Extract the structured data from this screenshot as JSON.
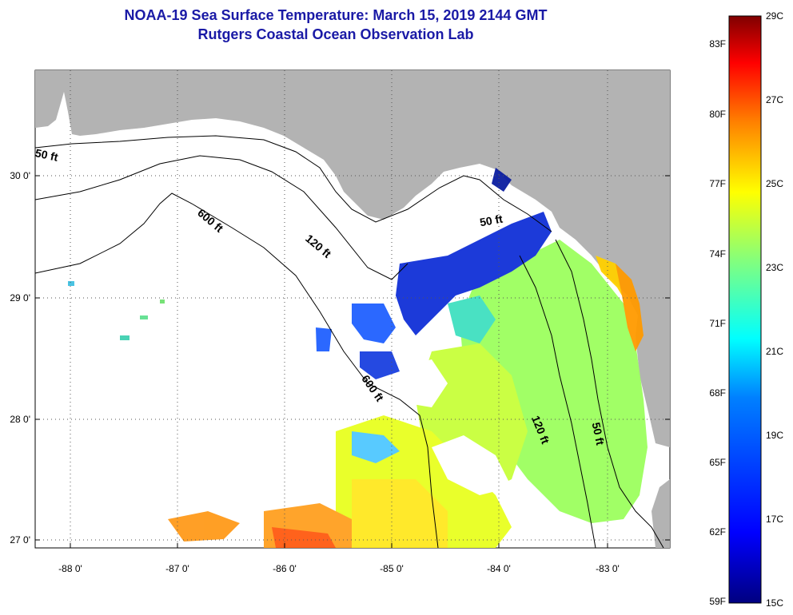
{
  "title": {
    "line1": "NOAA-19 Sea Surface Temperature:  March 15, 2019 2144 GMT",
    "line2": "Rutgers Coastal Ocean Observation Lab"
  },
  "latitude_labels": [
    "30 0'",
    "29 0'",
    "28 0'",
    "27 0'"
  ],
  "longitude_labels": [
    "-88 0'",
    "-87 0'",
    "-86 0'",
    "-85 0'",
    "-84 0'",
    "-83 0'"
  ],
  "contour_labels": [
    "50 ft",
    "600 ft",
    "120 ft",
    "50 ft",
    "600 ft",
    "120 ft",
    "50 ft"
  ],
  "colorbar": {
    "fahrenheit_labels": [
      "83F",
      "80F",
      "77F",
      "74F",
      "71F",
      "68F",
      "65F",
      "62F",
      "59F"
    ],
    "celsius_labels": [
      "29C",
      "27C",
      "25C",
      "23C",
      "21C",
      "19C",
      "17C",
      "15C"
    ],
    "colors": [
      "#800000",
      "#ff0000",
      "#ff8000",
      "#ffff00",
      "#80ff80",
      "#00ffff",
      "#0080ff",
      "#0000ff",
      "#000080"
    ]
  },
  "colors": {
    "land": "#b3b3b3",
    "title": "#1a1aa6",
    "contour": "#000000"
  }
}
